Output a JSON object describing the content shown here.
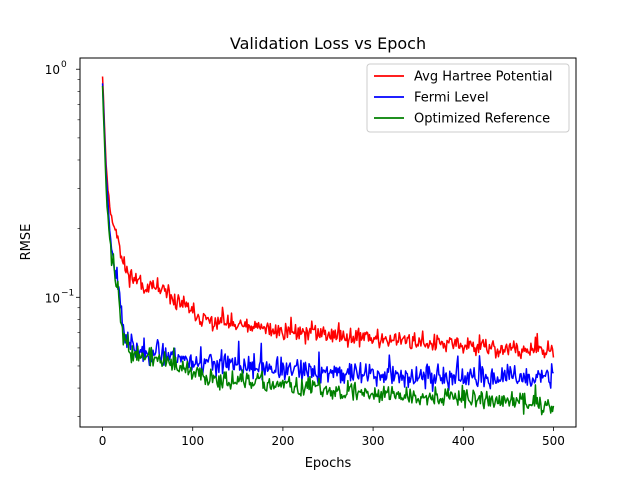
{
  "chart_data": {
    "type": "line",
    "title": "Validation Loss vs Epoch",
    "xlabel": "Epochs",
    "ylabel": "RMSE",
    "xlim": [
      -25,
      525
    ],
    "ylim": [
      0.027,
      1.12
    ],
    "yscale": "log",
    "grid": false,
    "legend_position": "top-right",
    "x_ticks": [
      {
        "value": 0,
        "label": "0"
      },
      {
        "value": 100,
        "label": "100"
      },
      {
        "value": 200,
        "label": "200"
      },
      {
        "value": 300,
        "label": "300"
      },
      {
        "value": 400,
        "label": "400"
      },
      {
        "value": 500,
        "label": "500"
      }
    ],
    "y_major_ticks": [
      {
        "value": 0.1,
        "label": "10",
        "exp": "−1"
      },
      {
        "value": 1.0,
        "label": "10",
        "exp": "0"
      }
    ],
    "y_minor_ticks": [
      0.03,
      0.04,
      0.05,
      0.06,
      0.07,
      0.08,
      0.09,
      0.2,
      0.3,
      0.4,
      0.5,
      0.6,
      0.7,
      0.8,
      0.9
    ],
    "series": [
      {
        "name": "Avg Hartree Potential",
        "color": "#ff0000",
        "noise": 0.055,
        "seed": 11,
        "anchors": [
          [
            0,
            0.95
          ],
          [
            2,
            0.6
          ],
          [
            4,
            0.38
          ],
          [
            6,
            0.3
          ],
          [
            8,
            0.25
          ],
          [
            10,
            0.22
          ],
          [
            15,
            0.2
          ],
          [
            18,
            0.18
          ],
          [
            20,
            0.15
          ],
          [
            25,
            0.135
          ],
          [
            30,
            0.125
          ],
          [
            40,
            0.118
          ],
          [
            50,
            0.11
          ],
          [
            60,
            0.108
          ],
          [
            70,
            0.103
          ],
          [
            80,
            0.097
          ],
          [
            90,
            0.093
          ],
          [
            100,
            0.085
          ],
          [
            110,
            0.08
          ],
          [
            120,
            0.078
          ],
          [
            150,
            0.075
          ],
          [
            200,
            0.071
          ],
          [
            250,
            0.069
          ],
          [
            300,
            0.066
          ],
          [
            350,
            0.064
          ],
          [
            400,
            0.061
          ],
          [
            450,
            0.059
          ],
          [
            500,
            0.057
          ]
        ]
      },
      {
        "name": "Fermi Level",
        "color": "#0000ff",
        "noise": 0.07,
        "seed": 23,
        "anchors": [
          [
            0,
            0.88
          ],
          [
            2,
            0.55
          ],
          [
            4,
            0.35
          ],
          [
            6,
            0.26
          ],
          [
            8,
            0.2
          ],
          [
            10,
            0.17
          ],
          [
            12,
            0.15
          ],
          [
            15,
            0.13
          ],
          [
            18,
            0.11
          ],
          [
            20,
            0.095
          ],
          [
            22,
            0.08
          ],
          [
            25,
            0.068
          ],
          [
            30,
            0.062
          ],
          [
            40,
            0.058
          ],
          [
            60,
            0.057
          ],
          [
            80,
            0.056
          ],
          [
            100,
            0.052
          ],
          [
            150,
            0.05
          ],
          [
            200,
            0.048
          ],
          [
            250,
            0.047
          ],
          [
            300,
            0.046
          ],
          [
            350,
            0.045
          ],
          [
            400,
            0.044
          ],
          [
            450,
            0.044
          ],
          [
            500,
            0.044
          ]
        ]
      },
      {
        "name": "Optimized Reference",
        "color": "#008000",
        "noise": 0.06,
        "seed": 37,
        "anchors": [
          [
            0,
            0.86
          ],
          [
            2,
            0.5
          ],
          [
            4,
            0.3
          ],
          [
            6,
            0.22
          ],
          [
            8,
            0.18
          ],
          [
            10,
            0.15
          ],
          [
            12,
            0.14
          ],
          [
            15,
            0.12
          ],
          [
            18,
            0.1
          ],
          [
            20,
            0.085
          ],
          [
            22,
            0.072
          ],
          [
            25,
            0.062
          ],
          [
            30,
            0.058
          ],
          [
            40,
            0.055
          ],
          [
            60,
            0.054
          ],
          [
            80,
            0.05
          ],
          [
            100,
            0.046
          ],
          [
            150,
            0.043
          ],
          [
            200,
            0.041
          ],
          [
            250,
            0.039
          ],
          [
            300,
            0.038
          ],
          [
            350,
            0.037
          ],
          [
            400,
            0.036
          ],
          [
            450,
            0.035
          ],
          [
            500,
            0.034
          ]
        ]
      }
    ]
  }
}
